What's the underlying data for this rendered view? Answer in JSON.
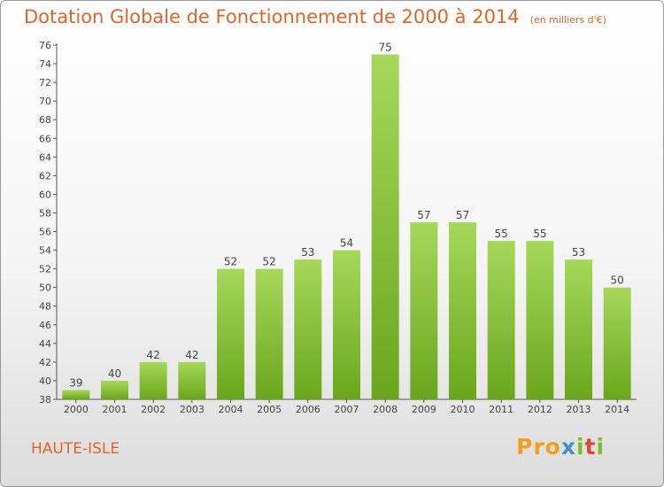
{
  "title": "Dotation Globale de Fonctionnement de 2000 à 2014",
  "unit": "(en milliers d'€)",
  "commune": "HAUTE-ISLE",
  "logo": {
    "p1": "Pro",
    "p2": "x",
    "p3": "i",
    "p4": "t",
    "p5": "i"
  },
  "chart_data": {
    "type": "bar",
    "title": "Dotation Globale de Fonctionnement de 2000 à 2014",
    "subtitle": "(en milliers d'€)",
    "categories": [
      "2000",
      "2001",
      "2002",
      "2003",
      "2004",
      "2005",
      "2006",
      "2007",
      "2008",
      "2009",
      "2010",
      "2011",
      "2012",
      "2013",
      "2014"
    ],
    "values": [
      39,
      40,
      42,
      42,
      52,
      52,
      53,
      54,
      75,
      57,
      57,
      55,
      55,
      53,
      50
    ],
    "xlabel": "",
    "ylabel": "",
    "ylim": [
      38,
      76
    ],
    "yticks": [
      38,
      40,
      42,
      44,
      46,
      48,
      50,
      52,
      54,
      56,
      58,
      60,
      62,
      64,
      66,
      68,
      70,
      72,
      74,
      76
    ],
    "grid": false,
    "bar_color": "#8cc63f",
    "label_color": "#444444",
    "title_color": "#e2632a"
  }
}
